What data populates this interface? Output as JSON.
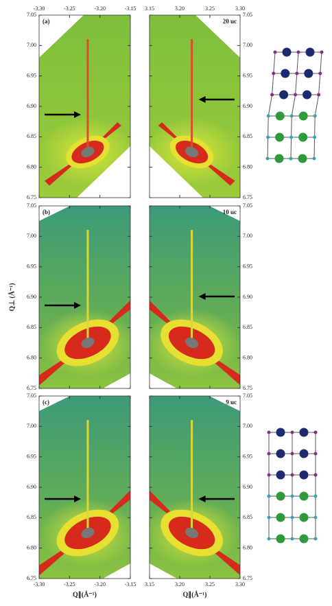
{
  "chart_data": [
    {
      "type": "map",
      "label": "(a)",
      "xlim": [
        -3.3,
        -3.15
      ],
      "ylim": [
        6.75,
        7.05
      ],
      "xticks": [
        {
          "value": -3.3,
          "label": "-3.30"
        },
        -3.25,
        {
          "value": -3.2,
          "label": "-3.20"
        },
        -3.15
      ],
      "yticks": [
        6.75,
        {
          "value": 6.8,
          "label": "6.80"
        },
        6.85,
        {
          "value": 6.9,
          "label": "6.90"
        },
        6.95,
        {
          "value": 7.0,
          "label": "7.00"
        },
        7.05
      ]
    },
    {
      "type": "map",
      "label": "20 uc",
      "xlim": [
        3.15,
        3.3
      ],
      "ylim": [
        6.75,
        7.05
      ],
      "xticks": [
        3.15,
        {
          "value": 3.2,
          "label": "3.20"
        },
        3.25,
        {
          "value": 3.3,
          "label": "3.30"
        }
      ],
      "yticks": [
        6.75,
        {
          "value": 6.8,
          "label": "6.80"
        },
        6.85,
        {
          "value": 6.9,
          "label": "6.90"
        },
        6.95,
        {
          "value": 7.0,
          "label": "7.00"
        },
        7.05
      ]
    },
    {
      "type": "map",
      "label": "(b)",
      "ylabel": "Q⊥ (Å⁻¹)",
      "xlim": [
        -3.3,
        -3.15
      ],
      "ylim": [
        6.75,
        7.05
      ],
      "xticks": [
        {
          "value": -3.3,
          "label": "-3.30"
        },
        -3.25,
        {
          "value": -3.2,
          "label": "-3.20"
        },
        -3.15
      ],
      "yticks": [
        6.75,
        {
          "value": 6.8,
          "label": "6.80"
        },
        6.85,
        {
          "value": 6.9,
          "label": "6.90"
        },
        6.95,
        {
          "value": 7.0,
          "label": "7.00"
        },
        7.05
      ]
    },
    {
      "type": "map",
      "label": "10 uc",
      "xlim": [
        3.15,
        3.3
      ],
      "ylim": [
        6.75,
        7.05
      ],
      "xticks": [
        3.15,
        {
          "value": 3.2,
          "label": "3.20"
        },
        3.25,
        {
          "value": 3.3,
          "label": "3.30"
        }
      ],
      "yticks": [
        6.75,
        {
          "value": 6.8,
          "label": "6.80"
        },
        6.85,
        {
          "value": 6.9,
          "label": "6.90"
        },
        6.95,
        {
          "value": 7.0,
          "label": "7.00"
        },
        7.05
      ]
    },
    {
      "type": "map",
      "label": "(c)",
      "xlabel": "Q∥(Å⁻¹)",
      "xlim": [
        -3.3,
        -3.15
      ],
      "ylim": [
        6.75,
        7.05
      ],
      "xticks": [
        {
          "value": -3.3,
          "label": "-3.30"
        },
        -3.25,
        {
          "value": -3.2,
          "label": "-3.20"
        },
        -3.15
      ],
      "yticks": [
        6.75,
        {
          "value": 6.8,
          "label": "6.80"
        },
        6.85,
        {
          "value": 6.9,
          "label": "6.90"
        },
        6.95,
        {
          "value": 7.0,
          "label": "7.00"
        },
        7.05
      ]
    },
    {
      "type": "map",
      "label": "9 uc",
      "xlabel": "Q∥(Å⁻¹)",
      "xlim": [
        3.15,
        3.3
      ],
      "ylim": [
        6.75,
        7.05
      ],
      "xticks": [
        3.15,
        {
          "value": 3.2,
          "label": "3.20"
        },
        3.25,
        {
          "value": 3.3,
          "label": "3.30"
        }
      ],
      "yticks": [
        6.75,
        {
          "value": 6.8,
          "label": "6.80"
        },
        6.85,
        {
          "value": 6.9,
          "label": "6.90"
        },
        6.95,
        {
          "value": 7.0,
          "label": "7.00"
        },
        7.05
      ]
    }
  ]
}
